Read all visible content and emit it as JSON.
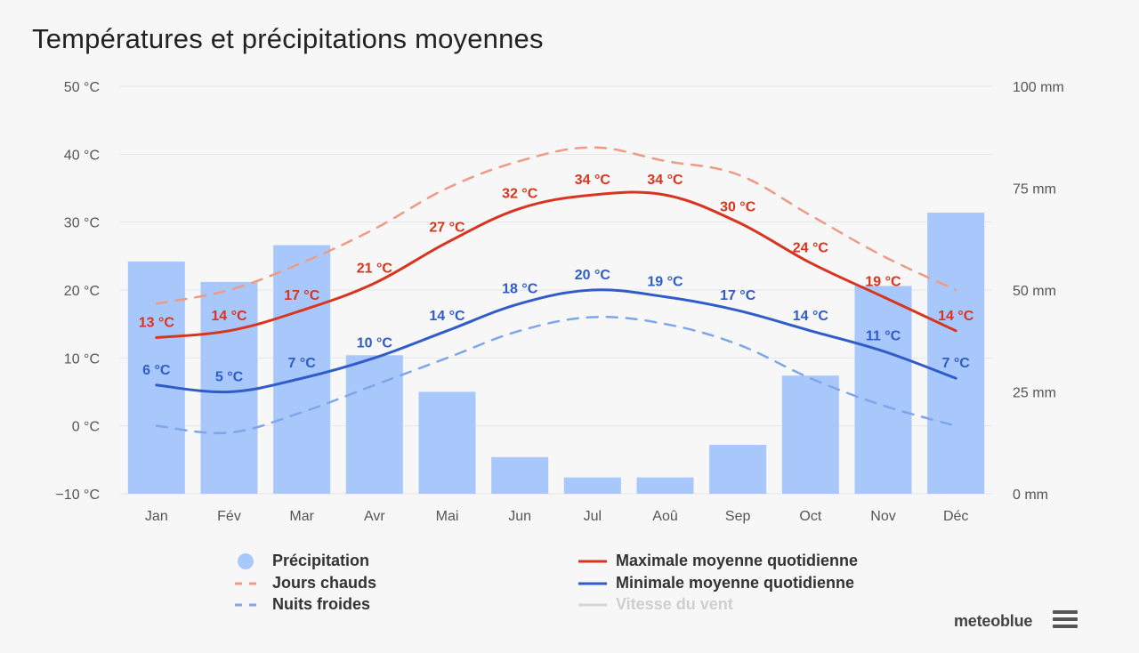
{
  "title": "Températures et précipitations moyennes",
  "brand": "meteoblue",
  "colors": {
    "max": "#d8351f",
    "min": "#2f5cc9",
    "hot": "#ee9b86",
    "cold": "#7ea6ea",
    "precip": "#a8c7fb",
    "wind": "#d6d6d6",
    "grid": "#e6e6e6"
  },
  "legend": [
    {
      "key": "precip",
      "label": "Précipitation",
      "symbol": "circle",
      "enabled": true
    },
    {
      "key": "max",
      "label": "Maximale moyenne quotidienne",
      "symbol": "line",
      "enabled": true
    },
    {
      "key": "hot",
      "label": "Jours chauds",
      "symbol": "dash",
      "enabled": true
    },
    {
      "key": "min",
      "label": "Minimale moyenne quotidienne",
      "symbol": "line",
      "enabled": true
    },
    {
      "key": "cold",
      "label": "Nuits froides",
      "symbol": "dash",
      "enabled": true
    },
    {
      "key": "wind",
      "label": "Vitesse du vent",
      "symbol": "line",
      "enabled": false
    }
  ],
  "chart_data": {
    "type": "bar+line",
    "categories": [
      "Jan",
      "Fév",
      "Mar",
      "Avr",
      "Mai",
      "Jun",
      "Jul",
      "Aoû",
      "Sep",
      "Oct",
      "Nov",
      "Déc"
    ],
    "y_left": {
      "min": -10,
      "max": 50,
      "ticks": [
        -10,
        0,
        10,
        20,
        30,
        40,
        50
      ],
      "unit": "°C",
      "tick_labels": [
        "−10 °C",
        "0 °C",
        "10 °C",
        "20 °C",
        "30 °C",
        "40 °C",
        "50 °C"
      ]
    },
    "y_right": {
      "min": 0,
      "max": 100,
      "ticks": [
        0,
        25,
        50,
        75,
        100
      ],
      "unit": "mm",
      "tick_labels": [
        "0 mm",
        "25 mm",
        "50 mm",
        "75 mm",
        "100 mm"
      ]
    },
    "series": [
      {
        "name": "Précipitation",
        "key": "precip",
        "type": "bar",
        "axis": "right",
        "values": [
          57,
          52,
          61,
          34,
          25,
          9,
          4,
          4,
          12,
          29,
          51,
          69
        ]
      },
      {
        "name": "Maximale moyenne quotidienne",
        "key": "max",
        "type": "line",
        "axis": "left",
        "values": [
          13,
          14,
          17,
          21,
          27,
          32,
          34,
          34,
          30,
          24,
          19,
          14
        ],
        "labels": [
          "13 °C",
          "14 °C",
          "17 °C",
          "21 °C",
          "27 °C",
          "32 °C",
          "34 °C",
          "34 °C",
          "30 °C",
          "24 °C",
          "19 °C",
          "14 °C"
        ]
      },
      {
        "name": "Minimale moyenne quotidienne",
        "key": "min",
        "type": "line",
        "axis": "left",
        "values": [
          6,
          5,
          7,
          10,
          14,
          18,
          20,
          19,
          17,
          14,
          11,
          7
        ],
        "labels": [
          "6 °C",
          "5 °C",
          "7 °C",
          "10 °C",
          "14 °C",
          "18 °C",
          "20 °C",
          "19 °C",
          "17 °C",
          "14 °C",
          "11 °C",
          "7 °C"
        ]
      },
      {
        "name": "Jours chauds",
        "key": "hot",
        "type": "dashed-line",
        "axis": "left",
        "values": [
          18,
          20,
          24,
          29,
          35,
          39,
          41,
          39,
          37,
          31,
          25,
          20
        ]
      },
      {
        "name": "Nuits froides",
        "key": "cold",
        "type": "dashed-line",
        "axis": "left",
        "values": [
          0,
          -1,
          2,
          6,
          10,
          14,
          16,
          15,
          12,
          7,
          3,
          0
        ]
      }
    ]
  }
}
